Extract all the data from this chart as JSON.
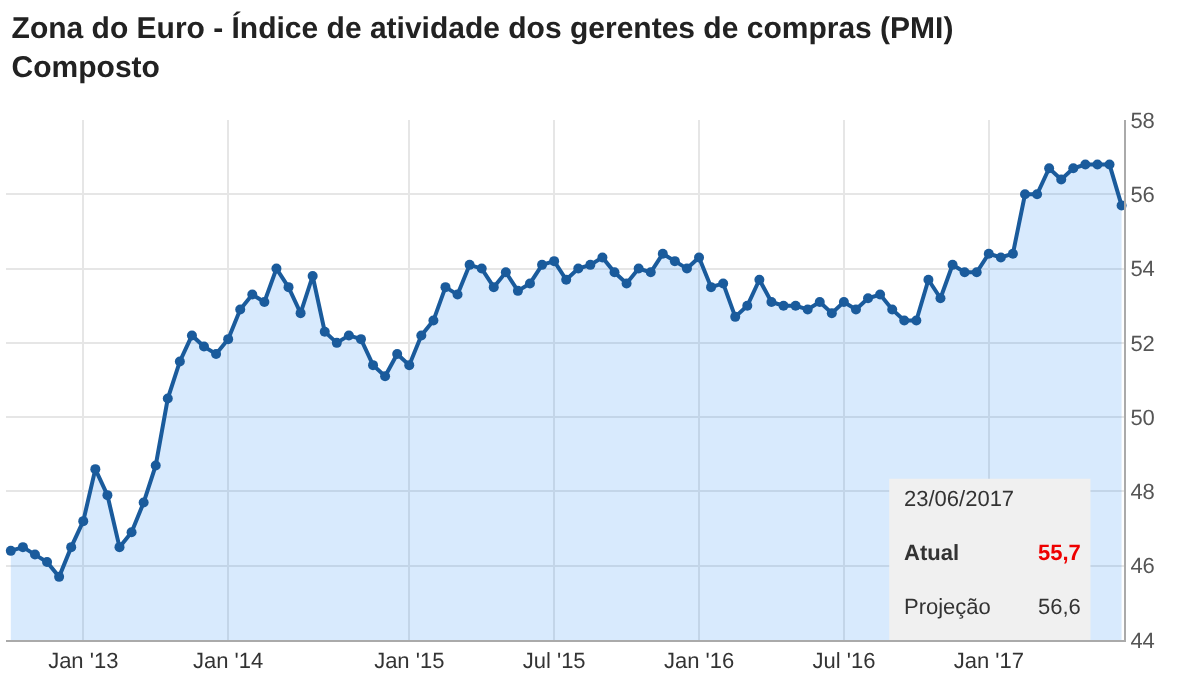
{
  "chart_data": {
    "type": "area",
    "title": "Zona do Euro - Índice de atividade dos gerentes de compras (PMI)\nComposto",
    "categories": [
      null,
      null,
      null,
      null,
      null,
      null,
      "Jan '13",
      null,
      null,
      null,
      null,
      null,
      null,
      null,
      null,
      null,
      null,
      null,
      "Jan '14",
      null,
      null,
      null,
      null,
      null,
      null,
      null,
      null,
      null,
      null,
      null,
      null,
      null,
      null,
      "Jan '15",
      null,
      null,
      null,
      null,
      null,
      null,
      null,
      null,
      null,
      null,
      null,
      "Jul '15",
      null,
      null,
      null,
      null,
      null,
      null,
      null,
      null,
      null,
      null,
      null,
      "Jan '16",
      null,
      null,
      null,
      null,
      null,
      null,
      null,
      null,
      null,
      null,
      null,
      "Jul '16",
      null,
      null,
      null,
      null,
      null,
      null,
      null,
      null,
      null,
      null,
      null,
      "Jan '17",
      null,
      null,
      null,
      null,
      null,
      null,
      null,
      null,
      null,
      null,
      null
    ],
    "series": [
      {
        "color": "#1a5b9c",
        "values": [
          46.4,
          46.5,
          46.3,
          46.1,
          45.7,
          46.5,
          47.2,
          48.6,
          47.9,
          46.5,
          46.9,
          47.7,
          48.7,
          50.5,
          51.5,
          52.2,
          51.9,
          51.7,
          52.1,
          52.9,
          53.3,
          53.1,
          54.0,
          53.5,
          52.8,
          53.8,
          52.3,
          52.0,
          52.2,
          52.1,
          51.4,
          51.1,
          51.7,
          51.4,
          52.2,
          52.6,
          53.5,
          53.3,
          54.1,
          54.0,
          53.5,
          53.9,
          53.4,
          53.6,
          54.1,
          54.2,
          53.7,
          54.0,
          54.1,
          54.3,
          53.9,
          53.6,
          54.0,
          53.9,
          54.4,
          54.2,
          54.0,
          54.3,
          53.5,
          53.6,
          52.7,
          53.0,
          53.7,
          53.1,
          53.0,
          53.0,
          52.9,
          53.1,
          52.8,
          53.1,
          52.9,
          53.2,
          53.3,
          52.9,
          52.6,
          52.6,
          53.7,
          53.2,
          54.1,
          53.9,
          53.9,
          54.4,
          54.3,
          54.4,
          56.0,
          56.0,
          56.7,
          56.4,
          56.7,
          56.8,
          56.8,
          56.8,
          55.7
        ]
      }
    ],
    "ylim": [
      44,
      58
    ],
    "yticks": [
      44,
      46,
      48,
      50,
      52,
      54,
      56,
      58
    ],
    "grid": true,
    "marker": "circle",
    "line_style": "solid",
    "annotations": [
      "23/06/2017",
      "Atual",
      "55,7",
      "Projeção",
      "56,6"
    ]
  }
}
